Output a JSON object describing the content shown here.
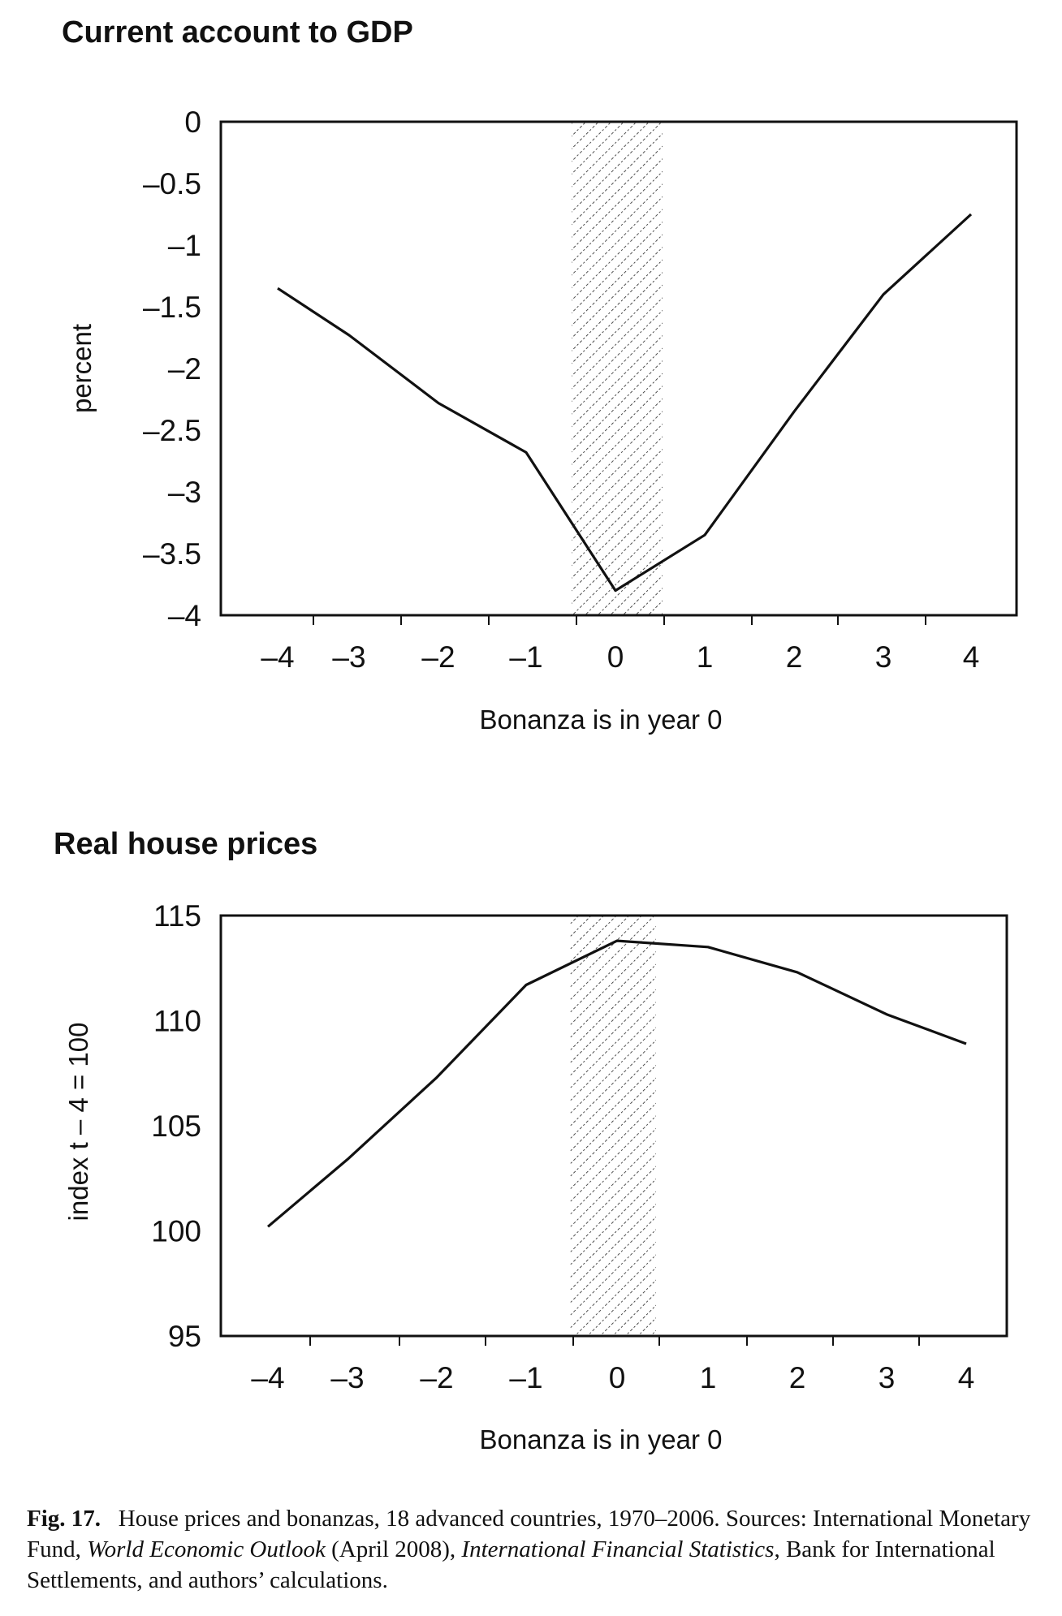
{
  "chart_data": [
    {
      "type": "line",
      "title": "Current account to GDP",
      "xlabel": "Bonanza is in year 0",
      "ylabel": "percent",
      "x": [
        -4,
        -3,
        -2,
        -1,
        0,
        1,
        2,
        3,
        4
      ],
      "x_tick_labels": [
        "–4",
        "–3",
        "–2",
        "–1",
        "0",
        "1",
        "2",
        "3",
        "4"
      ],
      "series": [
        {
          "values": [
            -1.35,
            -1.73,
            -2.28,
            -2.68,
            -3.8,
            -3.35,
            -2.35,
            -1.4,
            -0.75
          ]
        }
      ],
      "ylim": [
        -4,
        0
      ],
      "y_ticks": [
        0,
        -0.5,
        -1,
        -1.5,
        -2,
        -2.5,
        -3,
        -3.5,
        -4
      ],
      "y_tick_labels": [
        "0",
        "–0.5",
        "–1",
        "–1.5",
        "–2",
        "–2.5",
        "–3",
        "–3.5",
        "–4"
      ],
      "shaded_region": "year 0 (hatched)",
      "grid": false,
      "legend": "none"
    },
    {
      "type": "line",
      "title": "Real house prices",
      "xlabel": "Bonanza is in year 0",
      "ylabel": "index t – 4 = 100",
      "x": [
        -4,
        -3,
        -2,
        -1,
        0,
        1,
        2,
        3,
        4
      ],
      "x_tick_labels": [
        "–4",
        "–3",
        "–2",
        "–1",
        "0",
        "1",
        "2",
        "3",
        "4"
      ],
      "series": [
        {
          "values": [
            100.2,
            103.4,
            107.3,
            111.7,
            113.8,
            113.5,
            112.3,
            110.3,
            108.9
          ]
        }
      ],
      "ylim": [
        95,
        115
      ],
      "y_ticks": [
        115,
        110,
        105,
        100,
        95
      ],
      "y_tick_labels": [
        "115",
        "110",
        "105",
        "100",
        "95"
      ],
      "shaded_region": "year 0 (hatched)",
      "grid": false,
      "legend": "none"
    }
  ],
  "caption": {
    "fig_label": "Fig. 17.",
    "part1": "House prices and bonanzas, 18 advanced countries, 1970–2006. Sources: International Monetary Fund, ",
    "italic1": "World Economic Outlook",
    "part2": " (April 2008), ",
    "italic2": "International Financial Statistics",
    "part3": ", Bank for International Settlements, and authors’ calculations."
  }
}
